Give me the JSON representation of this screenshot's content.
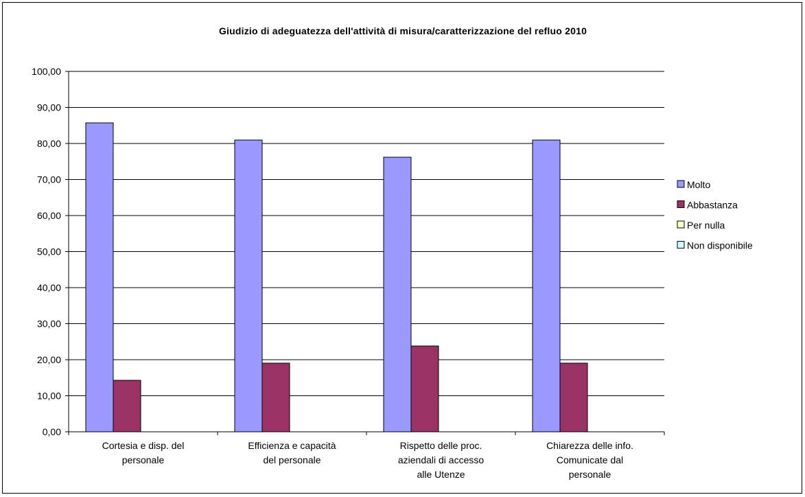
{
  "chart_data": {
    "type": "bar",
    "title": "Giudizio di adeguatezza dell'attività di misura/caratterizzazione del refluo 2010",
    "categories": [
      [
        "Cortesia e disp. del",
        "personale"
      ],
      [
        "Efficienza e capacità",
        "del personale"
      ],
      [
        "Rispetto delle proc.",
        "aziendali di accesso",
        "alle Utenze"
      ],
      [
        "Chiarezza delle info.",
        "Comunicate dal",
        "personale"
      ]
    ],
    "series": [
      {
        "name": "Molto",
        "color": "#9999ff",
        "values": [
          85.71,
          80.95,
          76.19,
          80.95
        ]
      },
      {
        "name": "Abbastanza",
        "color": "#993366",
        "values": [
          14.29,
          19.05,
          23.81,
          19.05
        ]
      },
      {
        "name": "Per nulla",
        "color": "#ffffcc",
        "values": [
          0,
          0,
          0,
          0
        ]
      },
      {
        "name": "Non disponibile",
        "color": "#ccffff",
        "values": [
          0,
          0,
          0,
          0
        ]
      }
    ],
    "ylim": [
      0,
      100
    ],
    "y_ticks": [
      "0,00",
      "10,00",
      "20,00",
      "30,00",
      "40,00",
      "50,00",
      "60,00",
      "70,00",
      "80,00",
      "90,00",
      "100,00"
    ],
    "grid": true,
    "legend_position": "right"
  }
}
